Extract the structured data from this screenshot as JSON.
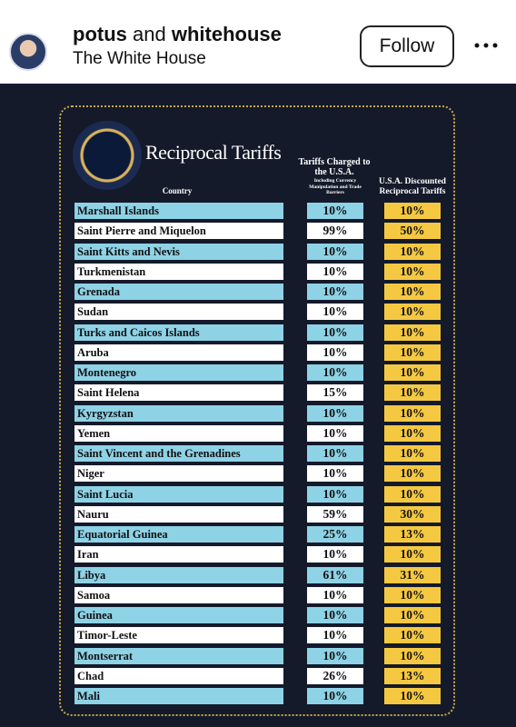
{
  "header": {
    "username_part1": "potus",
    "username_joiner": "and",
    "username_part2": "whitehouse",
    "subtitle": "The White House",
    "follow_button": "Follow"
  },
  "table": {
    "title": "Reciprocal Tariffs",
    "columns": [
      "Country",
      "Tariffs Charged to the U.S.A.",
      "U.S.A. Discounted Reciprocal Tariffs"
    ],
    "column_note": "Including Currency Manipulation and Trade Barriers",
    "rows": [
      [
        "Marshall Islands",
        "10%",
        "10%"
      ],
      [
        "Saint Pierre and Miquelon",
        "99%",
        "50%"
      ],
      [
        "Saint Kitts and Nevis",
        "10%",
        "10%"
      ],
      [
        "Turkmenistan",
        "10%",
        "10%"
      ],
      [
        "Grenada",
        "10%",
        "10%"
      ],
      [
        "Sudan",
        "10%",
        "10%"
      ],
      [
        "Turks and Caicos Islands",
        "10%",
        "10%"
      ],
      [
        "Aruba",
        "10%",
        "10%"
      ],
      [
        "Montenegro",
        "10%",
        "10%"
      ],
      [
        "Saint Helena",
        "15%",
        "10%"
      ],
      [
        "Kyrgyzstan",
        "10%",
        "10%"
      ],
      [
        "Yemen",
        "10%",
        "10%"
      ],
      [
        "Saint Vincent and the Grenadines",
        "10%",
        "10%"
      ],
      [
        "Niger",
        "10%",
        "10%"
      ],
      [
        "Saint Lucia",
        "10%",
        "10%"
      ],
      [
        "Nauru",
        "59%",
        "30%"
      ],
      [
        "Equatorial Guinea",
        "25%",
        "13%"
      ],
      [
        "Iran",
        "10%",
        "10%"
      ],
      [
        "Libya",
        "61%",
        "31%"
      ],
      [
        "Samoa",
        "10%",
        "10%"
      ],
      [
        "Guinea",
        "10%",
        "10%"
      ],
      [
        "Timor-Leste",
        "10%",
        "10%"
      ],
      [
        "Montserrat",
        "10%",
        "10%"
      ],
      [
        "Chad",
        "26%",
        "13%"
      ],
      [
        "Mali",
        "10%",
        "10%"
      ]
    ]
  }
}
